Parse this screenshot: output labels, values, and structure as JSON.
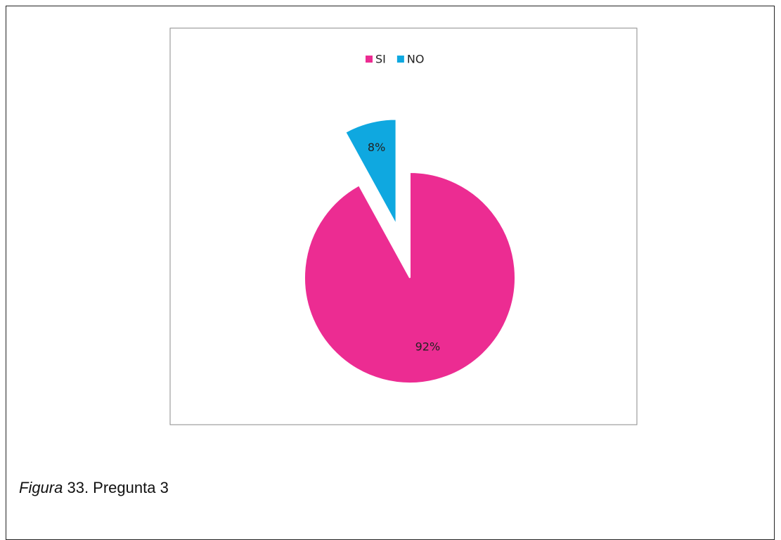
{
  "chart_data": {
    "type": "pie",
    "categories": [
      "SI",
      "NO"
    ],
    "values": [
      92,
      8
    ],
    "value_labels": [
      "92%",
      "8%"
    ],
    "colors": [
      "#ec2c92",
      "#0fa8e0"
    ],
    "exploded": [
      false,
      true
    ],
    "legend": "top"
  },
  "caption": {
    "label": "Figura",
    "text": "33. Pregunta 3"
  }
}
